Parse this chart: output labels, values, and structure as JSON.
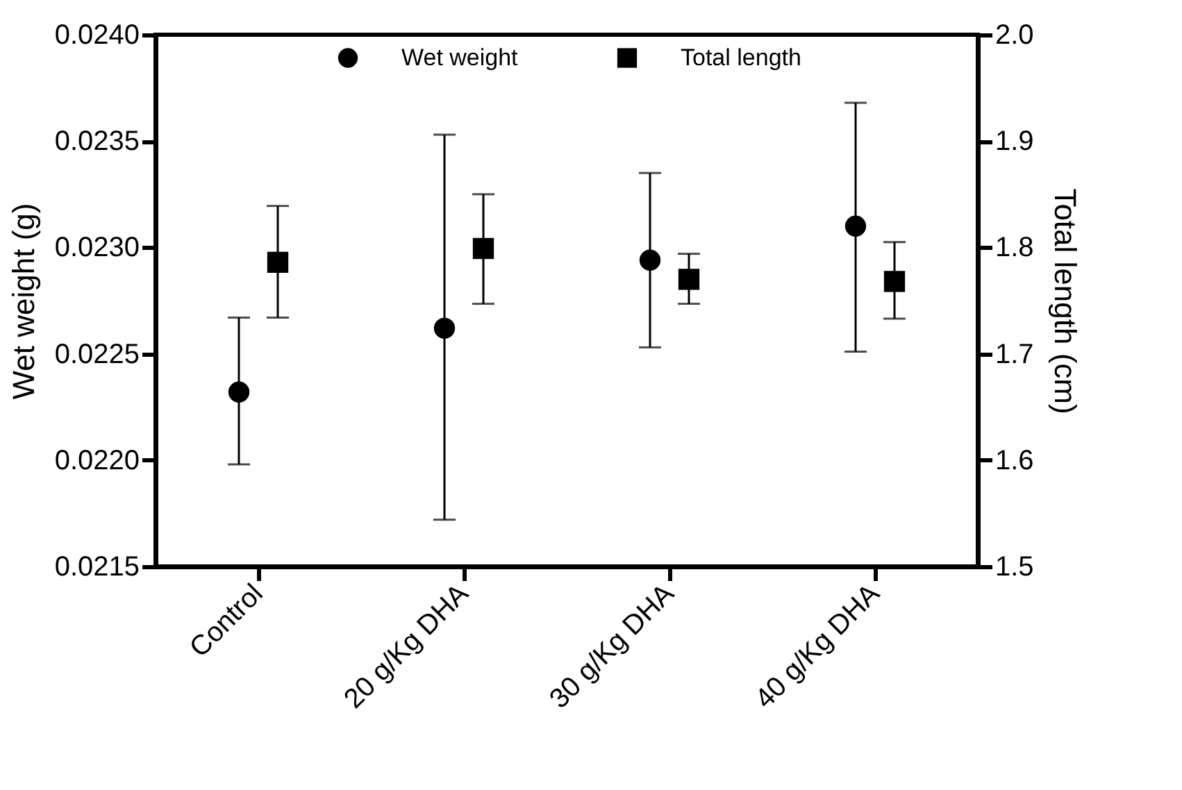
{
  "chart_data": {
    "type": "scatter",
    "ylabel": "Wet weight (g)",
    "y2label": "Total length (cm)",
    "categories": [
      "Control",
      "20 g/Kg DHA",
      "30 g/Kg DHA",
      "40 g/Kg DHA"
    ],
    "series": [
      {
        "name": "Wet weight",
        "color": "#000000",
        "marker": "circle",
        "values": [
          0.02232,
          0.02262,
          0.02294,
          0.0231
        ],
        "errors": [
          [
            0.02198,
            0.02267
          ],
          [
            0.02172,
            0.02353
          ],
          [
            0.02253,
            0.02335
          ],
          [
            0.02251,
            0.02368
          ]
        ]
      },
      {
        "name": "Total length",
        "color": "#000000",
        "marker": "square",
        "axis": "y2",
        "values": [
          1.786,
          1.799,
          1.77,
          1.768
        ],
        "errors": [
          [
            1.734,
            1.839
          ],
          [
            1.747,
            1.85
          ],
          [
            1.747,
            1.794
          ],
          [
            1.733,
            1.805
          ]
        ]
      }
    ],
    "ylim": [
      0.0215,
      0.024
    ],
    "yticks": [
      {
        "value": 0.0215,
        "label": "0.0215"
      },
      {
        "value": 0.022,
        "label": "0.0220"
      },
      {
        "value": 0.0225,
        "label": "0.0225"
      },
      {
        "value": 0.023,
        "label": "0.0230"
      },
      {
        "value": 0.0235,
        "label": "0.0235"
      },
      {
        "value": 0.024,
        "label": "0.0240"
      }
    ],
    "y2lim": [
      1.5,
      2.0
    ],
    "y2ticks": [
      {
        "value": 1.5,
        "label": "1.5"
      },
      {
        "value": 1.6,
        "label": "1.6"
      },
      {
        "value": 1.7,
        "label": "1.7"
      },
      {
        "value": 1.8,
        "label": "1.8"
      },
      {
        "value": 1.9,
        "label": "1.9"
      },
      {
        "value": 2.0,
        "label": "2.0"
      }
    ],
    "grid": false,
    "legend": "top"
  }
}
